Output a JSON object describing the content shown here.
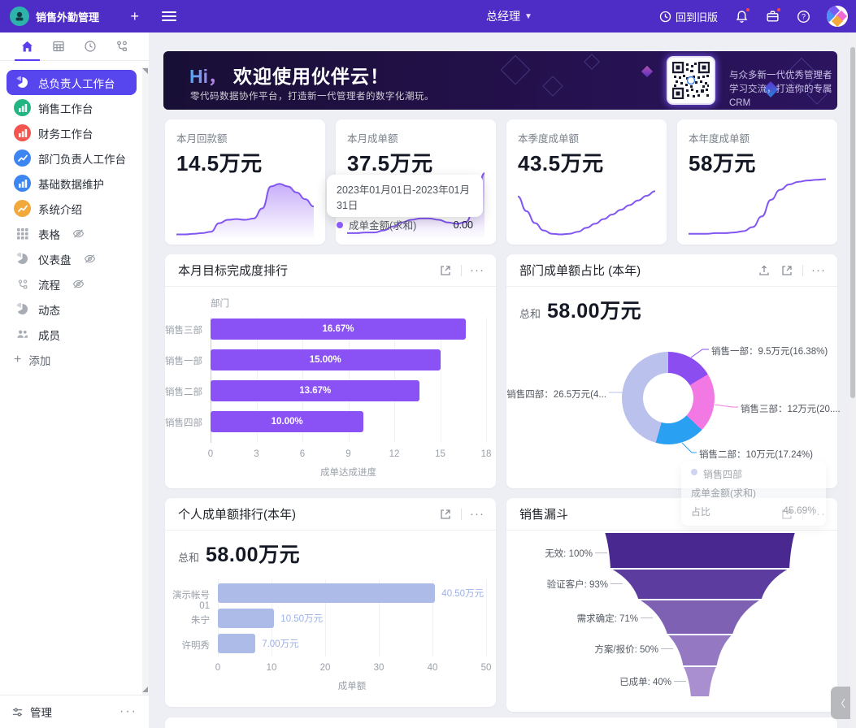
{
  "topbar": {
    "app_title": "销售外勤管理",
    "add": "+",
    "role": "总经理",
    "back_label": "回到旧版"
  },
  "sidebar": {
    "tabs": [
      "home",
      "table",
      "clock",
      "flow"
    ],
    "items": [
      {
        "label": "总负责人工作台",
        "icon": "pie",
        "color": "#5745ee",
        "selected": true,
        "hidden_eye": false
      },
      {
        "label": "销售工作台",
        "icon": "bars",
        "color": "#22b582",
        "selected": false,
        "hidden_eye": false
      },
      {
        "label": "财务工作台",
        "icon": "bars",
        "color": "#f2564e",
        "selected": false,
        "hidden_eye": false
      },
      {
        "label": "部门负责人工作台",
        "icon": "line",
        "color": "#3d86f2",
        "selected": false,
        "hidden_eye": false
      },
      {
        "label": "基础数据维护",
        "icon": "bars",
        "color": "#3d86f2",
        "selected": false,
        "hidden_eye": false
      },
      {
        "label": "系统介绍",
        "icon": "line",
        "color": "#f2a93c",
        "selected": false,
        "hidden_eye": false
      },
      {
        "label": "表格",
        "icon": "grid",
        "color": "gray",
        "selected": false,
        "hidden_eye": true
      },
      {
        "label": "仪表盘",
        "icon": "pie",
        "color": "gray",
        "selected": false,
        "hidden_eye": true
      },
      {
        "label": "流程",
        "icon": "flow",
        "color": "gray",
        "selected": false,
        "hidden_eye": true
      },
      {
        "label": "动态",
        "icon": "pie",
        "color": "gray",
        "selected": false,
        "hidden_eye": false
      },
      {
        "label": "成员",
        "icon": "people",
        "color": "gray",
        "selected": false,
        "hidden_eye": false
      }
    ],
    "add_label": "添加",
    "footer_label": "管理",
    "footer_dots": "···"
  },
  "banner": {
    "headline_hi": "Hi，",
    "headline": "欢迎使用伙伴云！",
    "subtitle": "零代码数据协作平台，打造新一代管理者的数字化潮玩。",
    "qr_line1": "与众多新一代优秀管理者",
    "qr_line2": "学习交流，打造你的专属CRM"
  },
  "stat_cards": [
    {
      "label": "本月回款额",
      "value": "14.5万元"
    },
    {
      "label": "本月成单额",
      "value": "37.5万元"
    },
    {
      "label": "本季度成单额",
      "value": "43.5万元"
    },
    {
      "label": "本年度成单额",
      "value": "58万元"
    }
  ],
  "card2_tooltip": {
    "date_range": "2023年01月01日-2023年01月31日",
    "series": "成单金额(求和)",
    "value": "0.00"
  },
  "collapse_glyph": "〈",
  "chart_data": [
    {
      "type": "bar",
      "orientation": "horizontal",
      "title": "本月目标完成度排行",
      "categories": [
        "销售三部",
        "销售一部",
        "销售二部",
        "销售四部"
      ],
      "values": [
        16.67,
        15.0,
        13.67,
        10.0
      ],
      "value_labels": [
        "16.67%",
        "15.00%",
        "13.67%",
        "10.00%"
      ],
      "xlabel": "成单达成进度",
      "ylabel": "部门",
      "xlim": [
        0,
        18
      ],
      "xticks": [
        0,
        3,
        6,
        9,
        12,
        15,
        18
      ],
      "bar_color": "#8a52f5",
      "label_inside": true
    },
    {
      "type": "pie",
      "title": "部门成单额占比 (本年)",
      "total_label": "总和",
      "total_value": "58.00万元",
      "slices": [
        {
          "name": "销售一部",
          "pct": 16.38,
          "color": "#8b4cf0",
          "label": "销售一部：9.5万元(16.38%)"
        },
        {
          "name": "销售三部",
          "pct": 20.69,
          "color": "#f279e3",
          "label": "销售三部：12万元(20...."
        },
        {
          "name": "销售二部",
          "pct": 17.24,
          "color": "#2aa0f2",
          "label": "销售二部：10万元(17.24%)"
        },
        {
          "name": "销售四部",
          "pct": 45.69,
          "color": "#b9c1ec",
          "label": "销售四部：26.5万元(4..."
        }
      ],
      "fading_tooltip": {
        "name": "销售四部",
        "row1": "成单金额(求和)",
        "row2_label": "占比",
        "row2_value": "45.69%"
      }
    },
    {
      "type": "bar",
      "orientation": "horizontal",
      "title": "个人成单额排行(本年)",
      "total_label": "总和",
      "total_value": "58.00万元",
      "categories": [
        "演示帐号01",
        "朱宁",
        "许明秀"
      ],
      "values": [
        40.5,
        10.5,
        7.0
      ],
      "value_labels": [
        "40.50万元",
        "10.50万元",
        "7.00万元"
      ],
      "xlabel": "成单额",
      "xlim": [
        0,
        50
      ],
      "xticks": [
        0,
        10,
        20,
        30,
        40,
        50
      ],
      "bar_color": "#adbbe9",
      "label_inside": false
    },
    {
      "type": "funnel",
      "title": "销售漏斗",
      "stages": [
        {
          "label": "无效: 100%",
          "pct": 100,
          "color": "#49298f"
        },
        {
          "label": "验证客户: 93%",
          "pct": 93,
          "color": "#5c3c9f"
        },
        {
          "label": "需求确定: 71%",
          "pct": 71,
          "color": "#7e61b3"
        },
        {
          "label": "方案/报价: 50%",
          "pct": 50,
          "color": "#9478c2"
        },
        {
          "label": "已成单: 40%",
          "pct": 40,
          "color": "#a98fd0"
        }
      ]
    },
    {
      "type": "area",
      "name": "spark-本月回款额",
      "values": [
        3,
        3,
        4,
        5,
        7,
        20,
        25,
        26,
        25,
        27,
        42,
        75,
        79,
        75,
        66,
        56,
        45
      ],
      "fill": true
    },
    {
      "type": "area",
      "name": "spark-本月成单额",
      "values": [
        5,
        5,
        6,
        6,
        9,
        15,
        21,
        25,
        27,
        27,
        25,
        21,
        19,
        22,
        50,
        95
      ],
      "fill": true
    },
    {
      "type": "line",
      "name": "spark-本季度成单额",
      "values": [
        60,
        38,
        20,
        9,
        4,
        3,
        4,
        7,
        13,
        19,
        26,
        33,
        40,
        47,
        54,
        61,
        68
      ],
      "fill": false
    },
    {
      "type": "line",
      "name": "spark-本年度成单额",
      "values": [
        4,
        4,
        4,
        5,
        5,
        6,
        8,
        14,
        30,
        55,
        70,
        78,
        82,
        84,
        85,
        86
      ],
      "fill": false
    }
  ]
}
